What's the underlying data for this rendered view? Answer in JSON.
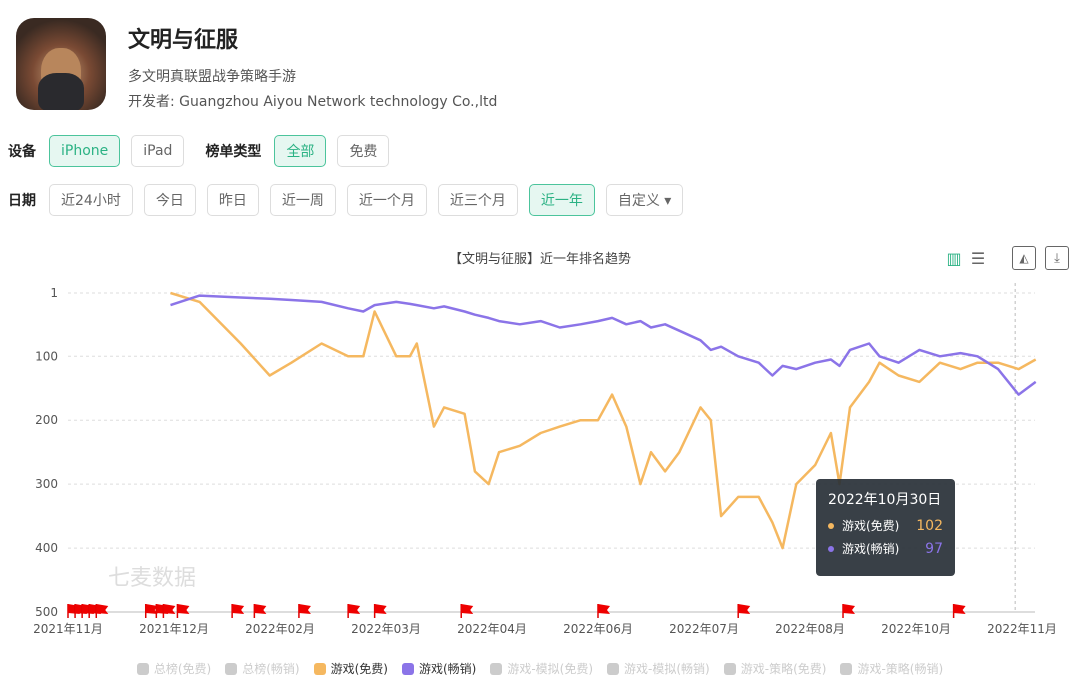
{
  "app": {
    "title": "文明与征服",
    "subtitle": "多文明真联盟战争策略手游",
    "developer": "开发者: Guangzhou Aiyou Network technology Co.,ltd"
  },
  "filters": {
    "device_label": "设备",
    "devices": [
      "iPhone",
      "iPad"
    ],
    "device_selected": "iPhone",
    "chart_type_label": "榜单类型",
    "chart_types": [
      "全部",
      "免费"
    ],
    "chart_type_selected": "全部",
    "date_label": "日期",
    "dates": [
      "近24小时",
      "今日",
      "昨日",
      "近一周",
      "近一个月",
      "近三个月",
      "近一年",
      "自定义 ▾"
    ],
    "date_selected": "近一年"
  },
  "toolbar": {
    "icons": [
      "bar-chart-icon",
      "list-icon",
      "image-icon",
      "download-icon"
    ]
  },
  "watermark": "七麦数据",
  "tooltip": {
    "date": "2022年10月30日",
    "rows": [
      {
        "name": "游戏(免费)",
        "value": "102",
        "color": "#f5b860"
      },
      {
        "name": "游戏(畅销)",
        "value": "97",
        "color": "#8b74e8"
      }
    ]
  },
  "chart_data": {
    "type": "line",
    "title": "【文明与征服】近一年排名趋势",
    "y_inverted": true,
    "ylim": [
      1,
      500
    ],
    "yticks": [
      "1",
      "100",
      "200",
      "300",
      "400",
      "500"
    ],
    "xticks": [
      "2021年11月",
      "2021年12月",
      "2022年02月",
      "2022年03月",
      "2022年04月",
      "2022年06月",
      "2022年07月",
      "2022年08月",
      "2022年10月",
      "2022年11月"
    ],
    "xtick_dates": [
      "2021-11-01",
      "2021-12-01",
      "2022-02-01",
      "2022-03-01",
      "2022-04-01",
      "2022-06-01",
      "2022-07-01",
      "2022-08-01",
      "2022-10-01",
      "2022-11-01"
    ],
    "grid": "horizontal dashed",
    "x": [
      "2021-11-30",
      "2021-12-16",
      "2022-01-09",
      "2022-01-26",
      "2022-02-04",
      "2022-02-12",
      "2022-02-19",
      "2022-02-23",
      "2022-02-26",
      "2022-03-04",
      "2022-03-08",
      "2022-03-10",
      "2022-03-15",
      "2022-03-18",
      "2022-03-24",
      "2022-03-27",
      "2022-03-31",
      "2022-04-05",
      "2022-04-17",
      "2022-04-29",
      "2022-05-10",
      "2022-05-22",
      "2022-06-01",
      "2022-06-05",
      "2022-06-09",
      "2022-06-13",
      "2022-06-16",
      "2022-06-20",
      "2022-06-24",
      "2022-06-30",
      "2022-07-03",
      "2022-07-06",
      "2022-07-11",
      "2022-07-17",
      "2022-07-21",
      "2022-07-24",
      "2022-07-28",
      "2022-08-04",
      "2022-08-13",
      "2022-08-18",
      "2022-08-24",
      "2022-09-04",
      "2022-09-10",
      "2022-09-21",
      "2022-10-02",
      "2022-10-08",
      "2022-10-14",
      "2022-10-19",
      "2022-10-25",
      "2022-10-31",
      "2022-11-05"
    ],
    "series": [
      {
        "name": "游戏(免费)",
        "color": "#f5b860",
        "values": [
          1,
          15,
          80,
          130,
          110,
          80,
          100,
          100,
          30,
          100,
          100,
          80,
          210,
          180,
          190,
          280,
          300,
          250,
          240,
          220,
          210,
          200,
          200,
          160,
          210,
          300,
          250,
          280,
          250,
          180,
          200,
          350,
          320,
          320,
          360,
          400,
          300,
          270,
          220,
          300,
          180,
          140,
          110,
          130,
          140,
          110,
          120,
          110,
          110,
          120,
          105
        ]
      },
      {
        "name": "游戏(畅销)",
        "color": "#8b74e8",
        "values": [
          20,
          5,
          8,
          10,
          12,
          15,
          25,
          30,
          20,
          15,
          18,
          20,
          25,
          22,
          30,
          35,
          40,
          45,
          50,
          45,
          55,
          50,
          45,
          40,
          50,
          45,
          55,
          50,
          60,
          75,
          90,
          85,
          100,
          110,
          130,
          115,
          120,
          110,
          105,
          115,
          90,
          80,
          100,
          110,
          90,
          100,
          95,
          100,
          120,
          160,
          140
        ]
      }
    ],
    "crosshair_date": "2022-10-30",
    "events": [
      "2021-11-01",
      "2021-11-03",
      "2021-11-05",
      "2021-11-07",
      "2021-11-09",
      "2021-11-23",
      "2021-11-26",
      "2021-11-28",
      "2021-12-03",
      "2022-01-04",
      "2022-01-17",
      "2022-02-06",
      "2022-02-19",
      "2022-02-26",
      "2022-03-23",
      "2022-06-01",
      "2022-07-11",
      "2022-08-20",
      "2022-10-12"
    ],
    "legend": [
      {
        "name": "总榜(免费)",
        "active": false
      },
      {
        "name": "总榜(畅销)",
        "active": false
      },
      {
        "name": "游戏(免费)",
        "active": true,
        "color": "#f5b860"
      },
      {
        "name": "游戏(畅销)",
        "active": true,
        "color": "#8b74e8"
      },
      {
        "name": "游戏-模拟(免费)",
        "active": false
      },
      {
        "name": "游戏-模拟(畅销)",
        "active": false
      },
      {
        "name": "游戏-策略(免费)",
        "active": false
      },
      {
        "name": "游戏-策略(畅销)",
        "active": false
      }
    ],
    "legend_position": "bottom"
  }
}
